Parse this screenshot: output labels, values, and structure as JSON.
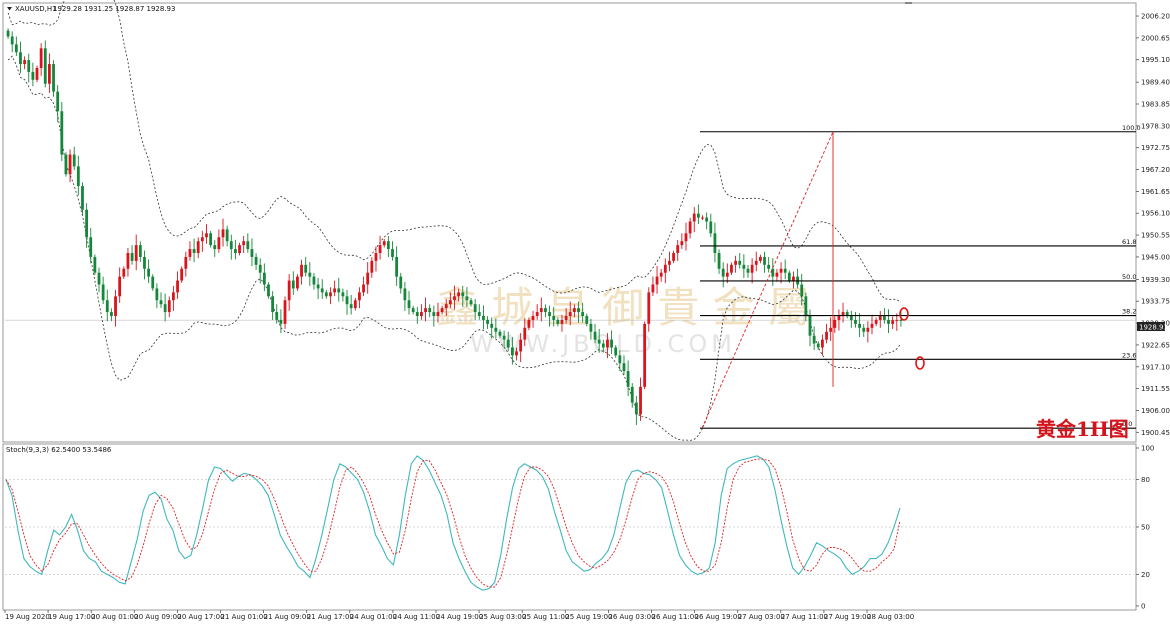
{
  "header": {
    "symbol": "XAUUSD,H1",
    "ohlc": "1929.28 1931.25 1928.87 1928.93",
    "dropdown_icon": "triangle-down-icon"
  },
  "watermark": {
    "chinese": "鑫 城 皇 御 貴 金 屬",
    "url": "WWW.JBOLD.COM"
  },
  "stamp": "黄金1H图",
  "price_label": "1928.93",
  "colors": {
    "bull": "#d8141c",
    "bear": "#16873a",
    "fib_line": "#000000",
    "bollinger": "#333333",
    "stoch_main": "#40b8bd",
    "stoch_signal": "#e02020",
    "stamp": "#d4141c",
    "marker": "#e01010"
  },
  "chart_data": [
    {
      "type": "candlestick",
      "title": "XAUUSD,H1",
      "y_ticks": [
        "2006.20",
        "2000.65",
        "1995.10",
        "1989.40",
        "1983.85",
        "1978.30",
        "1972.75",
        "1967.20",
        "1961.65",
        "1956.10",
        "1950.55",
        "1945.00",
        "1939.30",
        "1933.75",
        "1928.20",
        "1922.65",
        "1917.10",
        "1911.55",
        "1906.00",
        "1900.45"
      ],
      "ylim": [
        1898.5,
        2009.0
      ],
      "x_ticks": [
        "19 Aug 2020",
        "19 Aug 17:00",
        "20 Aug 01:00",
        "20 Aug 09:00",
        "20 Aug 17:00",
        "21 Aug 01:00",
        "21 Aug 09:00",
        "21 Aug 17:00",
        "24 Aug 01:00",
        "24 Aug 11:00",
        "24 Aug 19:00",
        "25 Aug 03:00",
        "25 Aug 11:00",
        "25 Aug 19:00",
        "26 Aug 03:00",
        "26 Aug 11:00",
        "26 Aug 19:00",
        "27 Aug 03:00",
        "27 Aug 11:00",
        "27 Aug 19:00",
        "28 Aug 03:00"
      ],
      "bar_count": 226,
      "close_series": [
        2001,
        1999,
        1997,
        1994,
        1995,
        1992,
        1990,
        1993,
        1998,
        1989,
        1994,
        1987,
        1982,
        1971,
        1966,
        1971,
        1968,
        1963,
        1957,
        1950,
        1945,
        1941,
        1938,
        1934,
        1931,
        1930,
        1935,
        1940,
        1942,
        1946,
        1944,
        1948,
        1945,
        1942,
        1940,
        1937,
        1934,
        1933,
        1931,
        1934,
        1936,
        1939,
        1942,
        1945,
        1947,
        1946,
        1949,
        1950,
        1951,
        1948,
        1947,
        1950,
        1952,
        1949,
        1947,
        1946,
        1948,
        1949,
        1947,
        1945,
        1943,
        1941,
        1938,
        1935,
        1931,
        1929,
        1928,
        1934,
        1939,
        1937,
        1940,
        1943,
        1941,
        1940,
        1938,
        1937,
        1936,
        1935,
        1936,
        1937,
        1936,
        1935,
        1933,
        1932,
        1934,
        1936,
        1938,
        1941,
        1944,
        1946,
        1948,
        1949,
        1947,
        1945,
        1940,
        1937,
        1934,
        1932,
        1931,
        1930,
        1931,
        1932,
        1931,
        1930,
        1931,
        1932,
        1933,
        1934,
        1935,
        1936,
        1935,
        1934,
        1933,
        1931,
        1930,
        1929,
        1928,
        1927,
        1926,
        1925,
        1924,
        1922,
        1920,
        1921,
        1924,
        1927,
        1929,
        1930,
        1931,
        1932,
        1931,
        1930,
        1929,
        1928,
        1929,
        1930,
        1931,
        1932,
        1931,
        1930,
        1928,
        1926,
        1924,
        1923,
        1922,
        1924,
        1922,
        1920,
        1918,
        1916,
        1912,
        1908,
        1905,
        1912,
        1928,
        1936,
        1938,
        1940,
        1941,
        1943,
        1944,
        1946,
        1948,
        1949,
        1951,
        1954,
        1956,
        1955,
        1955,
        1954,
        1951,
        1946,
        1942,
        1940,
        1941,
        1943,
        1944,
        1943,
        1942,
        1941,
        1943,
        1944,
        1945,
        1943,
        1942,
        1940,
        1941,
        1942,
        1941,
        1939,
        1940,
        1938,
        1935,
        1930,
        1925,
        1923,
        1922,
        1924,
        1926,
        1927,
        1929,
        1930,
        1931,
        1930,
        1929,
        1928,
        1927,
        1926,
        1927,
        1928,
        1929,
        1930,
        1929,
        1928,
        1928.93,
        1929,
        1928.93
      ],
      "fibonacci": {
        "levels": [
          {
            "label": "100.0",
            "price": 1976.8
          },
          {
            "label": "61.8",
            "price": 1947.8
          },
          {
            "label": "50.0",
            "price": 1938.9
          },
          {
            "label": "38.2",
            "price": 1930.1
          },
          {
            "label": "23.6",
            "price": 1919.0
          },
          {
            "label": "0.0",
            "price": 1901.5
          }
        ]
      },
      "current_price": 1928.93
    },
    {
      "type": "line",
      "title": "Stoch(9,3,3) 62.5400 53.5486",
      "y_ticks": [
        "100",
        "80",
        "50",
        "20",
        "0"
      ],
      "ylim": [
        0,
        100
      ],
      "series": [
        {
          "name": "Main",
          "values": [
            80,
            70,
            48,
            30,
            25,
            22,
            20,
            35,
            48,
            45,
            50,
            58,
            48,
            35,
            30,
            28,
            22,
            20,
            18,
            15,
            14,
            28,
            42,
            60,
            70,
            72,
            68,
            55,
            48,
            35,
            30,
            32,
            45,
            62,
            80,
            88,
            87,
            83,
            79,
            82,
            84,
            83,
            80,
            76,
            70,
            58,
            45,
            38,
            32,
            25,
            22,
            18,
            30,
            45,
            62,
            80,
            90,
            88,
            84,
            80,
            72,
            60,
            45,
            38,
            30,
            26,
            45,
            70,
            90,
            95,
            92,
            86,
            78,
            70,
            58,
            40,
            30,
            22,
            15,
            12,
            10,
            11,
            15,
            32,
            55,
            75,
            87,
            90,
            88,
            86,
            82,
            74,
            60,
            48,
            35,
            28,
            25,
            22,
            23,
            27,
            30,
            35,
            45,
            62,
            78,
            85,
            86,
            84,
            83,
            80,
            75,
            60,
            45,
            32,
            26,
            22,
            20,
            21,
            24,
            40,
            70,
            87,
            90,
            92,
            93,
            94,
            95,
            93,
            88,
            74,
            55,
            38,
            24,
            20,
            25,
            32,
            40,
            38,
            35,
            33,
            30,
            24,
            20,
            22,
            25,
            30,
            30,
            33,
            40,
            50,
            62
          ]
        },
        {
          "name": "Signal",
          "values": [
            80,
            74,
            60,
            45,
            32,
            26,
            22,
            26,
            35,
            42,
            46,
            52,
            52,
            45,
            38,
            32,
            27,
            23,
            20,
            18,
            16,
            18,
            26,
            38,
            52,
            64,
            70,
            68,
            62,
            52,
            42,
            36,
            37,
            46,
            60,
            74,
            84,
            86,
            84,
            82,
            82,
            83,
            82,
            80,
            76,
            68,
            58,
            48,
            40,
            33,
            27,
            22,
            22,
            30,
            42,
            58,
            75,
            86,
            88,
            84,
            78,
            70,
            58,
            48,
            40,
            33,
            34,
            48,
            68,
            85,
            92,
            92,
            86,
            78,
            70,
            58,
            44,
            32,
            24,
            18,
            14,
            12,
            12,
            18,
            32,
            50,
            68,
            82,
            88,
            88,
            86,
            82,
            74,
            62,
            50,
            40,
            32,
            28,
            25,
            24,
            26,
            29,
            34,
            42,
            54,
            68,
            80,
            84,
            85,
            84,
            82,
            76,
            66,
            52,
            40,
            31,
            25,
            22,
            22,
            26,
            40,
            62,
            80,
            88,
            91,
            92,
            93,
            93,
            92,
            87,
            76,
            60,
            42,
            30,
            23,
            22,
            26,
            33,
            37,
            37,
            36,
            34,
            30,
            25,
            22,
            22,
            24,
            28,
            31,
            36,
            54
          ]
        }
      ]
    }
  ]
}
